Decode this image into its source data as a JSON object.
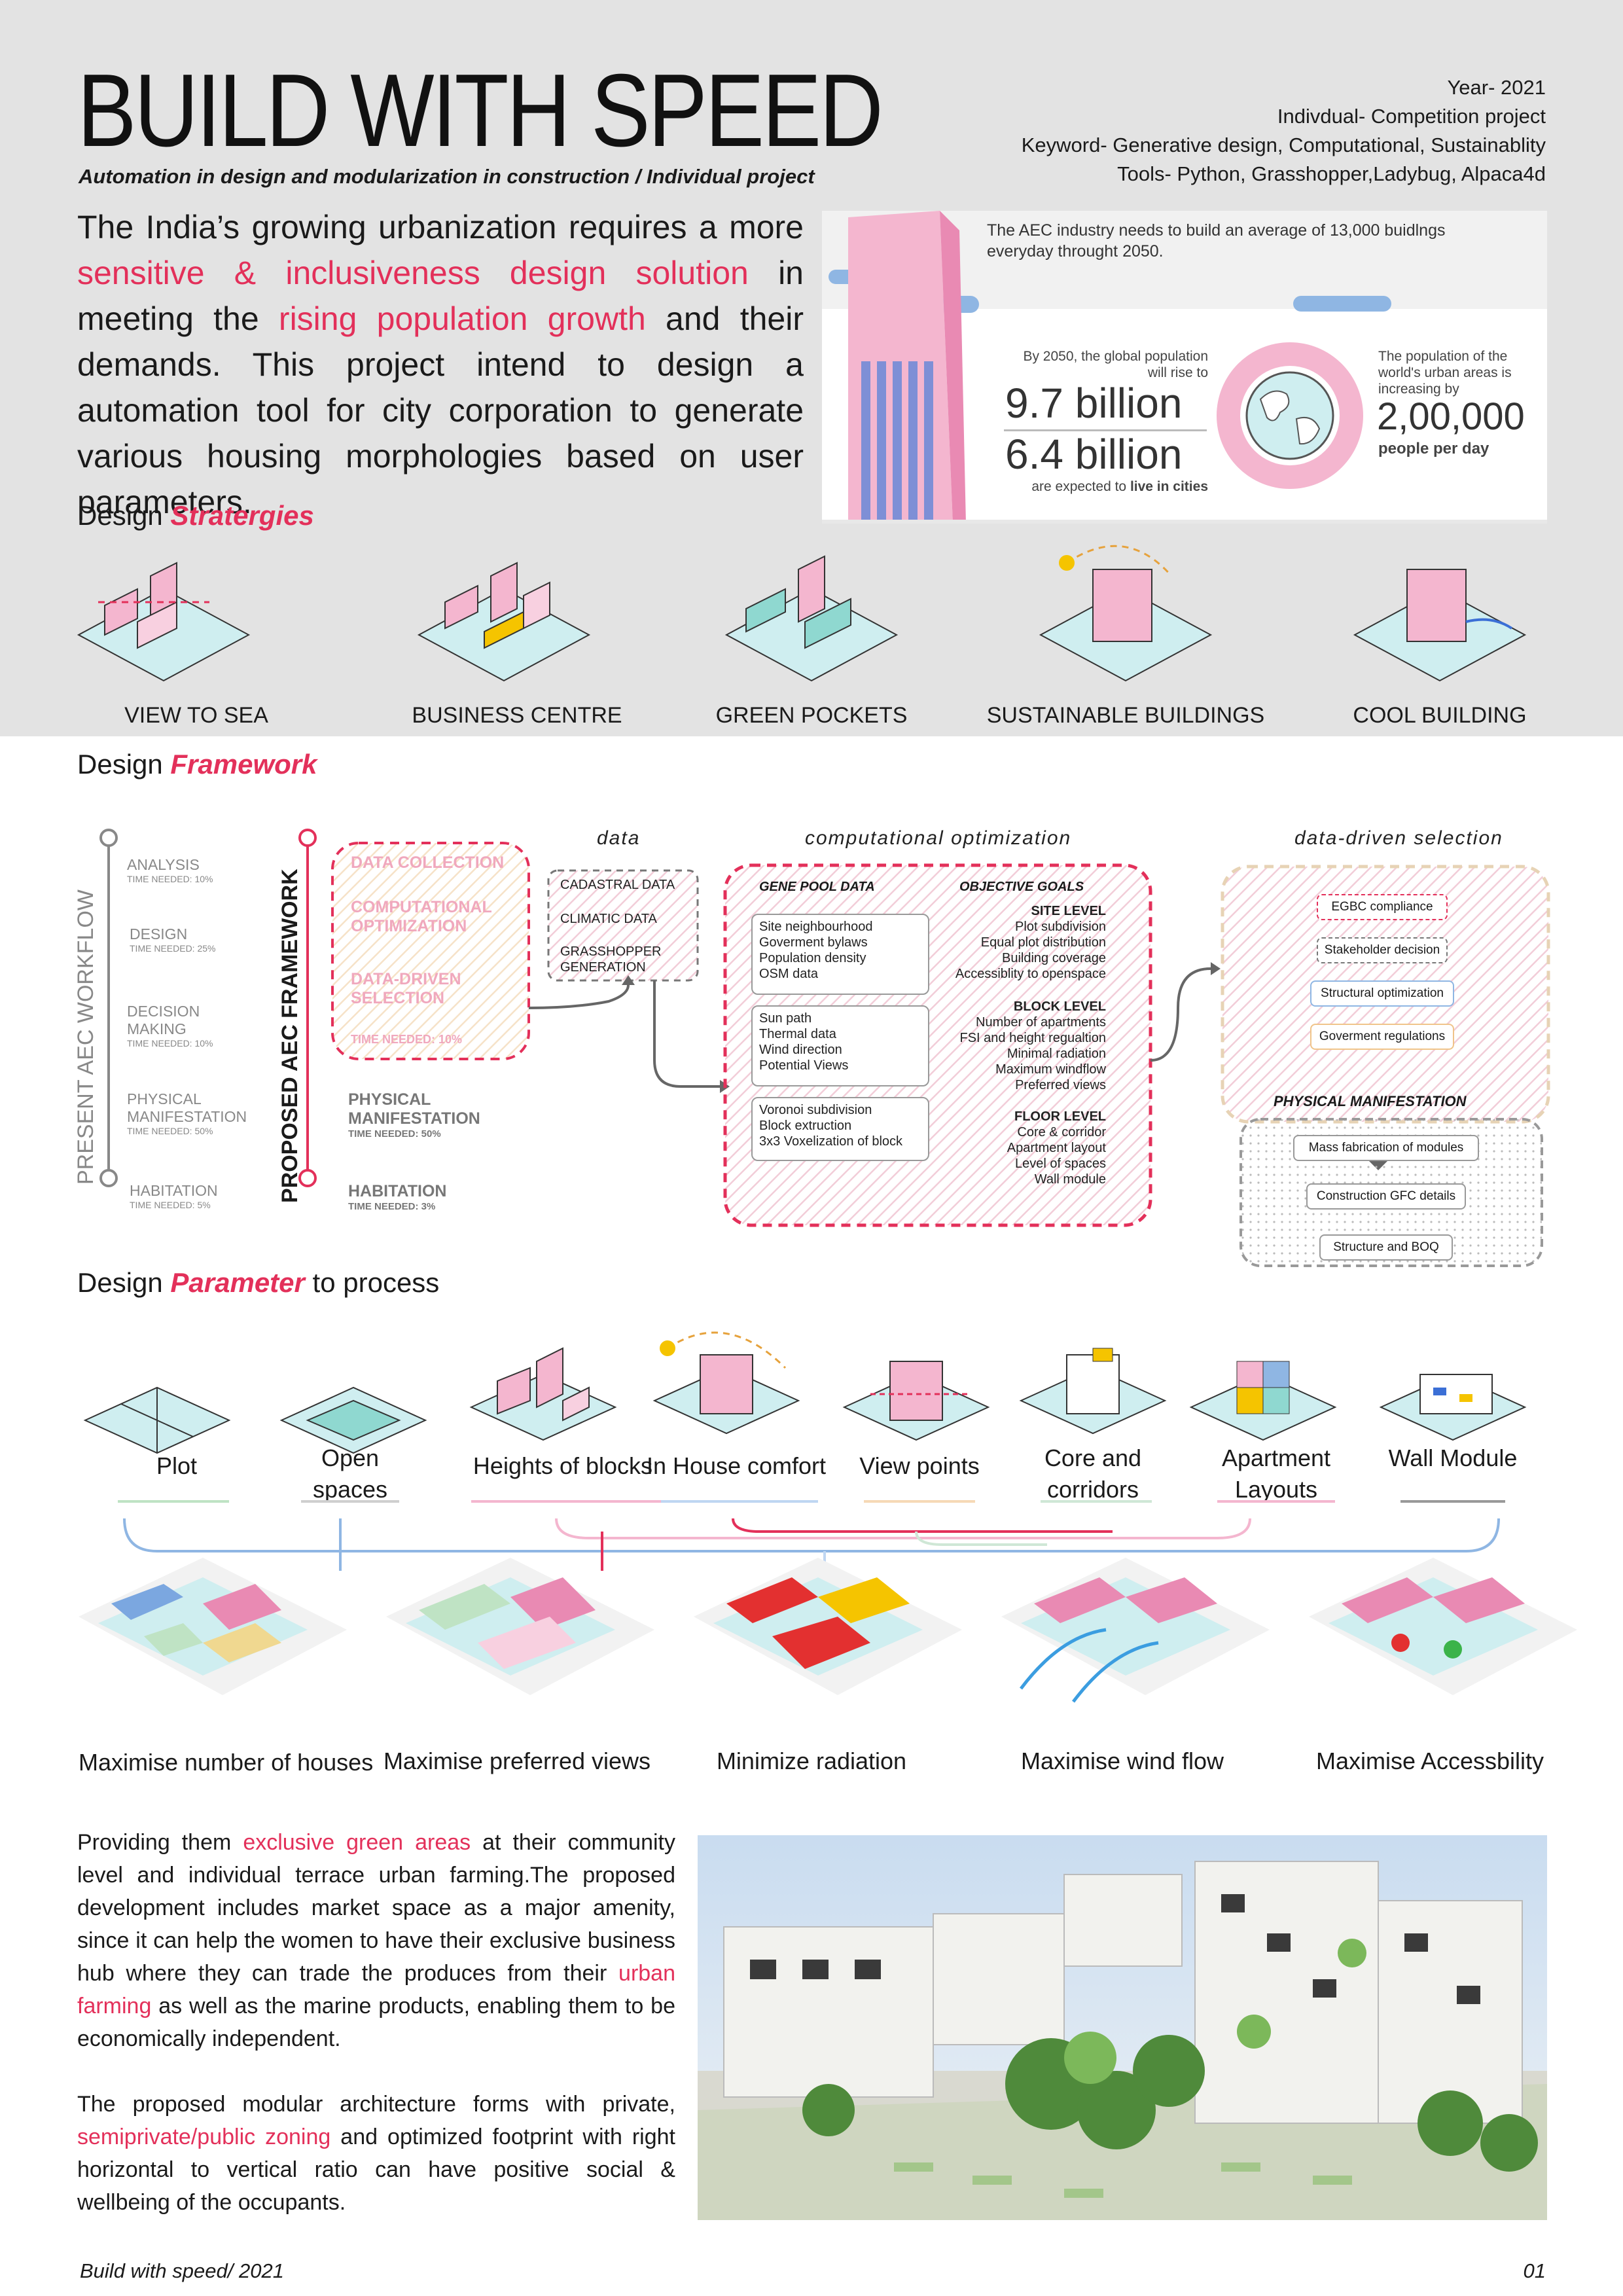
{
  "header": {
    "title": "BUILD WITH SPEED",
    "subtitle": "Automation in design and modularization in construction / Individual project",
    "year": "Year- 2021",
    "type": "Indivdual- Competition project",
    "keywords": "Keyword- Generative design, Computational, Sustainablity",
    "tools": "Tools- Python, Grasshopper,Ladybug, Alpaca4d"
  },
  "intro": {
    "p1": "The India’s growing urbanization requires a more",
    "h1": "sensitive & inclusiveness design solution",
    "p2": " in meeting the ",
    "h2": "rising population growth",
    "p3": " and their demands. This project intend to design a automation tool for city corporation to generate various housing morphologies based on user parameters."
  },
  "stats": {
    "aec_note": "The AEC industry needs to build an average of 13,000 buidlngs everyday throught 2050.",
    "global_caption": "By 2050, the global population will rise to",
    "global_value": "9.7 billion",
    "cities_value": "6.4 billion",
    "cities_caption_a": "are expected to ",
    "cities_caption_b": "live in cities",
    "urban_caption": "The population of the world's urban areas is increasing by",
    "urban_value": "2,00,000",
    "urban_unit": "people per day"
  },
  "strategies": {
    "heading_a": "Design ",
    "heading_b": "Stratergies",
    "items": [
      "VIEW TO SEA",
      "BUSINESS CENTRE",
      "GREEN POCKETS",
      "SUSTAINABLE BUILDINGS",
      "COOL BUILDING"
    ]
  },
  "framework": {
    "heading_a": "Design ",
    "heading_b": "Framework",
    "present_label": "PRESENT AEC WORKFLOW",
    "proposed_label": "PROPOSED AEC FRAMEWORK",
    "present_steps": [
      {
        "name": "ANALYSIS",
        "time": "TIME NEEDED: 10%"
      },
      {
        "name": "DESIGN",
        "time": "TIME NEEDED: 25%"
      },
      {
        "name": "DECISION MAKING",
        "time": "TIME NEEDED: 10%"
      },
      {
        "name": "PHYSICAL MANIFESTATION",
        "time": "TIME NEEDED: 50%"
      },
      {
        "name": "HABITATION",
        "time": "TIME NEEDED: 5%"
      }
    ],
    "proposed_steps": {
      "s1": "DATA COLLECTION",
      "s2": "COMPUTATIONAL OPTIMIZATION",
      "s3": "DATA-DRIVEN SELECTION",
      "s3_time": "TIME NEEDED: 10%",
      "s4": "PHYSICAL MANIFESTATION",
      "s4_time": "TIME NEEDED: 50%",
      "s5": "HABITATION",
      "s5_time": "TIME NEEDED: 3%"
    },
    "data_title": "data",
    "data_items": [
      "CADASTRAL DATA",
      "CLIMATIC DATA",
      "GRASSHOPPER GENERATION"
    ],
    "opt_title": "computational optimization",
    "gene_title": "GENE POOL DATA",
    "goals_title": "OBJECTIVE GOALS",
    "gene_1": "Site neighbourhood\nGoverment bylaws\nPopulation density\nOSM data",
    "gene_2": "Sun path\nThermal data\nWind direction\nPotential Views",
    "gene_3": "Voronoi subdivision\nBlock extruction\n3x3 Voxelization of block",
    "site_title": "SITE LEVEL",
    "site_items": "Plot subdivision\nEqual plot distribution\nBuilding coverage\nAccessiblity to openspace",
    "block_title": "BLOCK LEVEL",
    "block_items": "Number of apartments\nFSI and height regualtion\nMinimal radiation\nMaximum windflow\nPreferred views",
    "floor_title": "FLOOR LEVEL",
    "floor_items": "Core & corridor\nApartment layout\nLevel of spaces\nWall module",
    "sel_title": "data-driven selection",
    "sel_items": [
      "EGBC compliance",
      "Stakeholder decision",
      "Structural optimization",
      "Goverment regulations"
    ],
    "phys_title": "PHYSICAL MANIFESTATION",
    "phys_items": [
      "Mass fabrication of modules",
      "Construction GFC details",
      "Structure and BOQ"
    ]
  },
  "parameters": {
    "heading_a": "Design ",
    "heading_b": "Parameter",
    "heading_c": " to process",
    "items": [
      "Plot",
      "Open spaces",
      "Heights of blocks",
      "In House comfort",
      "View points",
      "Core and corridors",
      "Apartment Layouts",
      "Wall Module"
    ]
  },
  "objectives": [
    "Maximise number of houses",
    "Maximise preferred views",
    "Minimize radiation",
    "Maximise wind flow",
    "Maximise Accessbility"
  ],
  "body": {
    "p1a": "Providing them ",
    "p1b": "exclusive green areas",
    "p1c": " at their community level and individual terrace urban farming.The proposed development includes market space as a major amenity, since it can help the women to have their exclusive business hub where they can trade the produces from their ",
    "p1d": "urban farming",
    "p1e": " as well as the marine products, enabling them to be economically independent.",
    "p2a": "The proposed modular architecture forms with private, ",
    "p2b": "semiprivate/public zoning",
    "p2c": " and optimized footprint with right horizontal to vertical ratio can have positive social & wellbeing of the occupants."
  },
  "footer": {
    "left": "Build with speed/ 2021",
    "right": "01"
  },
  "colors": {
    "accent": "#e3305a",
    "pink": "#f4b6cf",
    "teal": "#cfeef0",
    "yellow": "#f5c400",
    "gray": "#e3e3e3"
  }
}
